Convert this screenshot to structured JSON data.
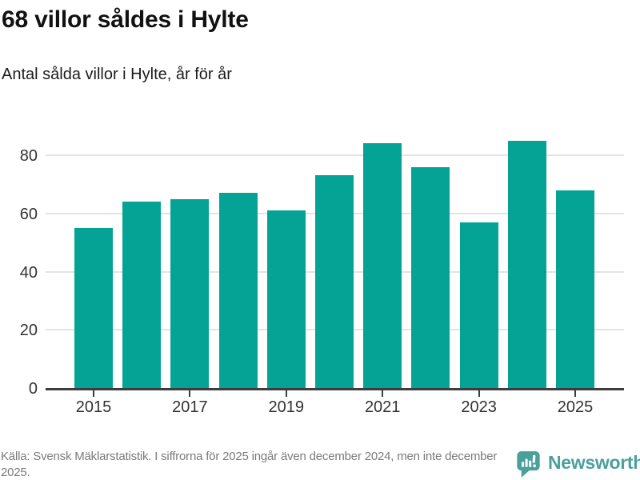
{
  "header": {
    "title": "68 villor såldes i Hylte",
    "subtitle": "Antal sålda villor i Hylte, år för år"
  },
  "chart_data": {
    "type": "bar",
    "categories": [
      "2015",
      "2016",
      "2017",
      "2018",
      "2019",
      "2020",
      "2021",
      "2022",
      "2023",
      "2024",
      "2025"
    ],
    "values": [
      55,
      64,
      65,
      67,
      61,
      73,
      84,
      76,
      57,
      85,
      68
    ],
    "title": "68 villor såldes i Hylte",
    "subtitle": "Antal sålda villor i Hylte, år för år",
    "xlabel": "",
    "ylabel": "",
    "ylim": [
      0,
      88
    ],
    "yticks": [
      0,
      20,
      40,
      60,
      80
    ],
    "xticks_shown": [
      "2015",
      "2017",
      "2019",
      "2021",
      "2023",
      "2025"
    ],
    "grid": "horizontal",
    "legend": "none",
    "bar_color": "#05a396"
  },
  "footer": {
    "source": "Källa: Svensk Mäklarstatistik. I siffrorna för 2025 ingår även december 2024, men inte december 2025.",
    "brand": "Newsworthy"
  },
  "colors": {
    "bar": "#05a396",
    "brand_teal": "#4ba09c",
    "gridline": "#e3e3e3",
    "axis": "#3d3d3d",
    "tick_label": "#333333",
    "footer_text": "#7b7b7b"
  }
}
